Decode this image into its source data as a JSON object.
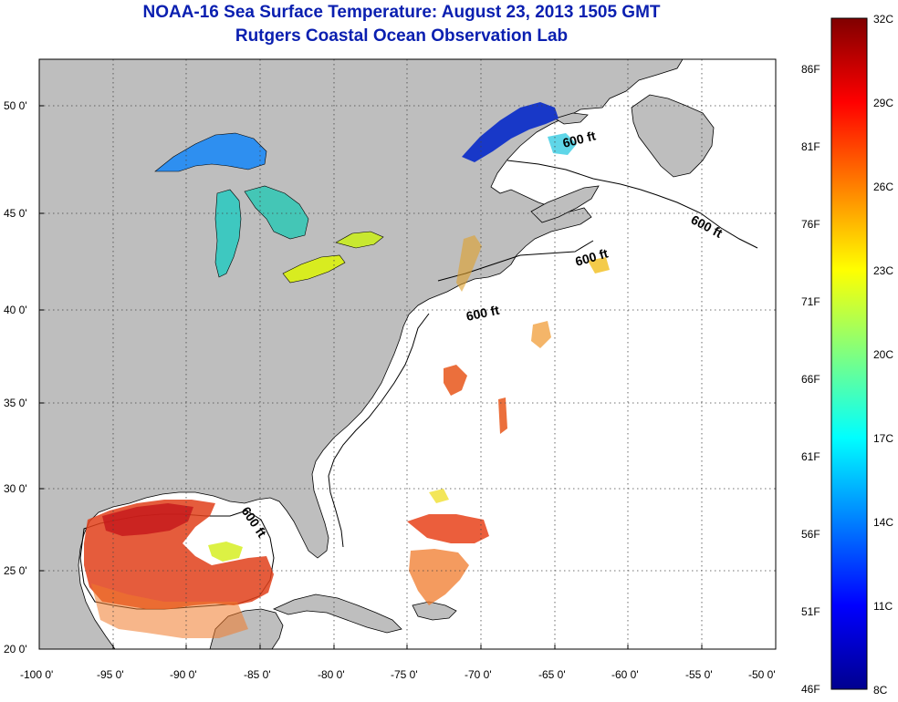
{
  "title": "NOAA-16 Sea Surface Temperature:  August 23, 2013 1505 GMT",
  "subtitle": "Rutgers Coastal Ocean Observation Lab",
  "map": {
    "extent": {
      "lon": [
        -100,
        -50
      ],
      "lat": [
        20,
        52.5
      ]
    },
    "land_color": "#bebebe",
    "ocean_color": "#ffffff",
    "contour_label": "600 ft",
    "lat_ticks": [
      "50 0'",
      "45 0'",
      "40 0'",
      "35 0'",
      "30 0'",
      "25 0'",
      "20 0'"
    ],
    "lon_ticks": [
      "-100 0'",
      "-95 0'",
      "-90 0'",
      "-85 0'",
      "-80 0'",
      "-75 0'",
      "-70 0'",
      "-65 0'",
      "-60 0'",
      "-55 0'",
      "-50 0'"
    ]
  },
  "colorbar": {
    "min_c": 8,
    "max_c": 32,
    "celsius_labels": [
      "32C",
      "29C",
      "26C",
      "23C",
      "20C",
      "17C",
      "14C",
      "11C",
      "8C"
    ],
    "fahrenheit_labels": [
      "86F",
      "81F",
      "76F",
      "71F",
      "66F",
      "61F",
      "56F",
      "51F",
      "46F"
    ],
    "colors": [
      "#00008f",
      "#0000ff",
      "#00ffff",
      "#ffff00",
      "#ff0000",
      "#800000"
    ]
  }
}
